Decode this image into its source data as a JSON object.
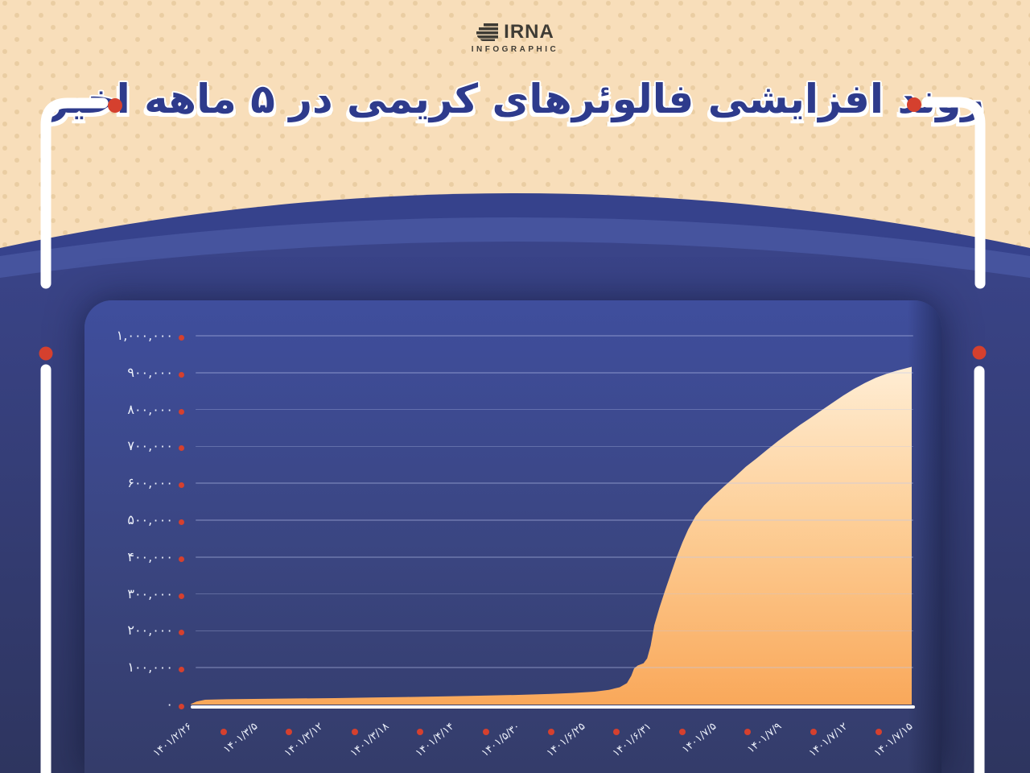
{
  "header": {
    "logo_title": "IRNA",
    "logo_subtitle": "INFOGRAPHIC",
    "title": "روند افزایشی فالوئرهای کریمی در ۵ ماهه اخیر"
  },
  "palette": {
    "background": "#F8DEBA",
    "dots": "#EACDA2",
    "blue_dark": "#36428C",
    "blue_band": "#46549E",
    "blue_body_top": "#3A4489",
    "blue_body_bottom": "#2E355F",
    "panel_top": "#3F4E9D",
    "panel_bottom": "#343C6A",
    "accent_red": "#D5402E",
    "title_blue": "#2E3B8C",
    "area_top": "#FFEDD4",
    "area_mid": "#FDCF98",
    "area_bottom": "#F9A85A",
    "text_light": "#EDF1FB",
    "logo_dark": "#3F3C35"
  },
  "chart_data": {
    "type": "area",
    "title": "روند افزایشی فالوئرهای کریمی در ۵ ماهه اخیر",
    "xlabel": "",
    "ylabel": "",
    "ylim": [
      0,
      1000000
    ],
    "grid": true,
    "legend": false,
    "categories": [
      "۱۴۰۱/۲/۲۶",
      "۱۴۰۱/۳/۵",
      "۱۴۰۱/۳/۱۲",
      "۱۴۰۱/۳/۱۸",
      "۱۴۰۱/۴/۱۴",
      "۱۴۰۱/۵/۳۰",
      "۱۴۰۱/۶/۲۵",
      "۱۴۰۱/۶/۳۱",
      "۱۴۰۱/۷/۵",
      "۱۴۰۱/۷/۹",
      "۱۴۰۱/۷/۱۲",
      "۱۴۰۱/۷/۱۵"
    ],
    "values": [
      5000,
      13000,
      16000,
      18000,
      22000,
      28000,
      33000,
      150000,
      568000,
      719000,
      845000,
      916000
    ],
    "y_ticks": [
      {
        "label": "۰",
        "value": 0
      },
      {
        "label": "۱۰۰,۰۰۰",
        "value": 100000
      },
      {
        "label": "۲۰۰,۰۰۰",
        "value": 200000
      },
      {
        "label": "۳۰۰,۰۰۰",
        "value": 300000
      },
      {
        "label": "۴۰۰,۰۰۰",
        "value": 400000
      },
      {
        "label": "۵۰۰,۰۰۰",
        "value": 500000
      },
      {
        "label": "۶۰۰,۰۰۰",
        "value": 600000
      },
      {
        "label": "۷۰۰,۰۰۰",
        "value": 700000
      },
      {
        "label": "۸۰۰,۰۰۰",
        "value": 800000
      },
      {
        "label": "۹۰۰,۰۰۰",
        "value": 900000
      },
      {
        "label": "۱,۰۰۰,۰۰۰",
        "value": 1000000
      }
    ],
    "curve_points": [
      [
        0,
        1000
      ],
      [
        0.008,
        8000
      ],
      [
        0.02,
        13000
      ],
      [
        0.05,
        14500
      ],
      [
        0.1,
        15500
      ],
      [
        0.15,
        16500
      ],
      [
        0.2,
        17500
      ],
      [
        0.25,
        19000
      ],
      [
        0.3,
        20500
      ],
      [
        0.35,
        22000
      ],
      [
        0.4,
        24000
      ],
      [
        0.45,
        26000
      ],
      [
        0.5,
        29000
      ],
      [
        0.53,
        31500
      ],
      [
        0.56,
        35000
      ],
      [
        0.58,
        40000
      ],
      [
        0.595,
        47000
      ],
      [
        0.605,
        58000
      ],
      [
        0.611,
        78000
      ],
      [
        0.615,
        98000
      ],
      [
        0.62,
        106000
      ],
      [
        0.628,
        112000
      ],
      [
        0.633,
        125000
      ],
      [
        0.638,
        160000
      ],
      [
        0.643,
        215000
      ],
      [
        0.65,
        262000
      ],
      [
        0.658,
        310000
      ],
      [
        0.666,
        355000
      ],
      [
        0.674,
        400000
      ],
      [
        0.682,
        440000
      ],
      [
        0.69,
        475000
      ],
      [
        0.7,
        510000
      ],
      [
        0.712,
        540000
      ],
      [
        0.725,
        565000
      ],
      [
        0.74,
        592000
      ],
      [
        0.755,
        618000
      ],
      [
        0.77,
        645000
      ],
      [
        0.785,
        668000
      ],
      [
        0.8,
        692000
      ],
      [
        0.815,
        715000
      ],
      [
        0.83,
        737000
      ],
      [
        0.845,
        758000
      ],
      [
        0.86,
        778000
      ],
      [
        0.875,
        798000
      ],
      [
        0.89,
        818000
      ],
      [
        0.905,
        838000
      ],
      [
        0.92,
        856000
      ],
      [
        0.935,
        872000
      ],
      [
        0.95,
        886000
      ],
      [
        0.965,
        897000
      ],
      [
        0.98,
        906000
      ],
      [
        1,
        916000
      ]
    ]
  }
}
